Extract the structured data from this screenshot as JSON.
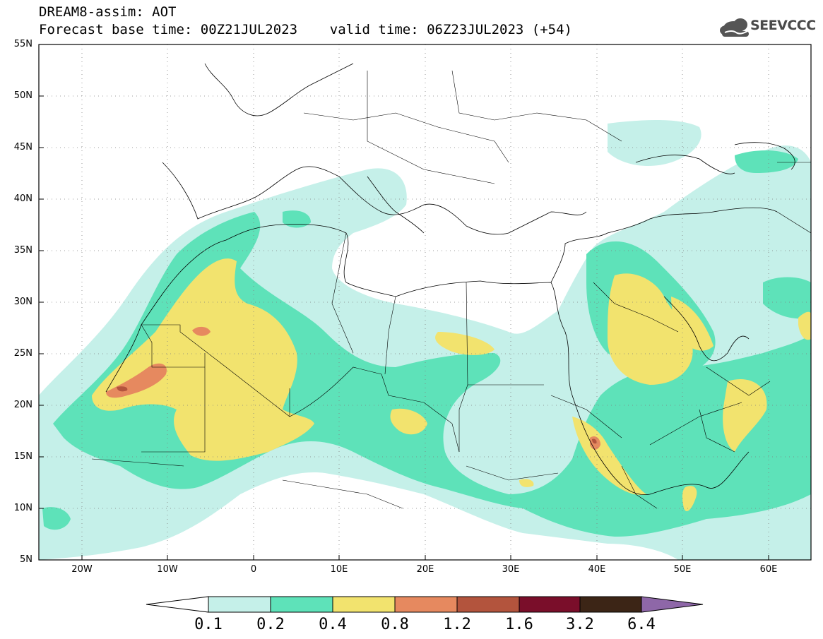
{
  "header": {
    "title_line1": "DREAM8-assim: AOT",
    "title_line2": "Forecast base time: 00Z21JUL2023    valid time: 06Z23JUL2023 (+54)",
    "logo_text": "SEEVCCC"
  },
  "map": {
    "latitude_labels": [
      "55N",
      "50N",
      "45N",
      "40N",
      "35N",
      "30N",
      "25N",
      "20N",
      "15N",
      "10N",
      "5N"
    ],
    "longitude_labels": [
      "20W",
      "10W",
      "0",
      "10E",
      "20E",
      "30E",
      "40E",
      "50E",
      "60E"
    ]
  },
  "colorbar": {
    "labels": [
      "0.1",
      "0.2",
      "0.4",
      "0.8",
      "1.2",
      "1.6",
      "3.2",
      "6.4"
    ],
    "colors": [
      "#ffffff",
      "#c5f0e9",
      "#5ee2b9",
      "#f2e36e",
      "#e6895f",
      "#b3543d",
      "#7a0e2a",
      "#3c2516",
      "#8e67a8"
    ]
  },
  "colors": {
    "level_1": "#c5f0e9",
    "level_2": "#5ee2b9",
    "level_3": "#f2e36e",
    "level_4": "#e6895f",
    "level_5": "#b3543d"
  }
}
